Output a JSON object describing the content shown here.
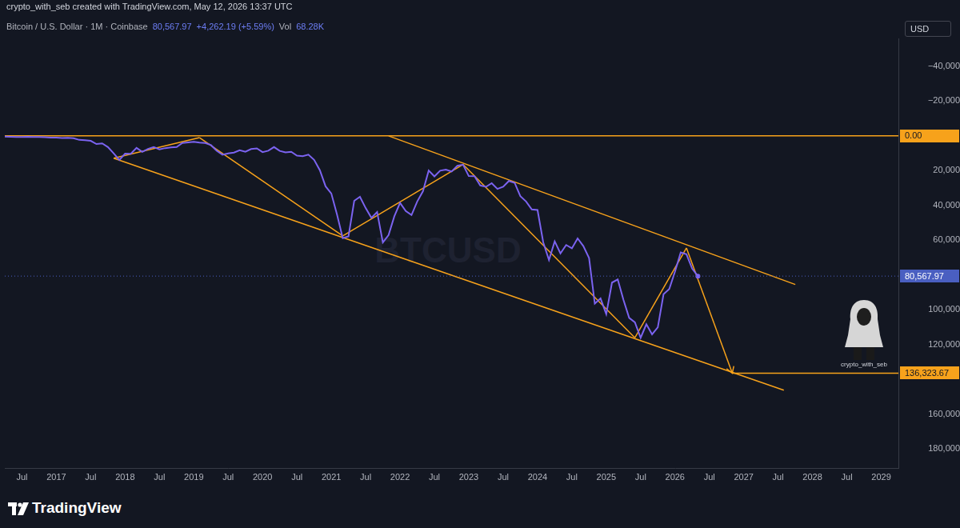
{
  "header": {
    "credit": "crypto_with_seb created with TradingView.com, May 12, 2026 13:37 UTC",
    "symbol": "Bitcoin / U.S. Dollar · 1M · Coinbase",
    "last": "80,567.97",
    "change": "+4,262.19 (+5.59%)",
    "vol_label": "Vol",
    "vol": "68.28K"
  },
  "currency": "USD",
  "footer": {
    "logo": "TradingView",
    "author": "crypto_with_seb"
  },
  "chart_data": {
    "type": "line",
    "watermark": "BTCUSD",
    "color": "#7b63f0",
    "grid": false,
    "x": [
      "2016-04",
      "2016-05",
      "2016-06",
      "2016-07",
      "2016-08",
      "2016-09",
      "2016-10",
      "2016-11",
      "2016-12",
      "2017-01",
      "2017-02",
      "2017-03",
      "2017-04",
      "2017-05",
      "2017-06",
      "2017-07",
      "2017-08",
      "2017-09",
      "2017-10",
      "2017-11",
      "2017-12",
      "2018-01",
      "2018-02",
      "2018-03",
      "2018-04",
      "2018-05",
      "2018-06",
      "2018-07",
      "2018-08",
      "2018-09",
      "2018-10",
      "2018-11",
      "2018-12",
      "2019-01",
      "2019-02",
      "2019-03",
      "2019-04",
      "2019-05",
      "2019-06",
      "2019-07",
      "2019-08",
      "2019-09",
      "2019-10",
      "2019-11",
      "2019-12",
      "2020-01",
      "2020-02",
      "2020-03",
      "2020-04",
      "2020-05",
      "2020-06",
      "2020-07",
      "2020-08",
      "2020-09",
      "2020-10",
      "2020-11",
      "2020-12",
      "2021-01",
      "2021-02",
      "2021-03",
      "2021-04",
      "2021-05",
      "2021-06",
      "2021-07",
      "2021-08",
      "2021-09",
      "2021-10",
      "2021-11",
      "2021-12",
      "2022-01",
      "2022-02",
      "2022-03",
      "2022-04",
      "2022-05",
      "2022-06",
      "2022-07",
      "2022-08",
      "2022-09",
      "2022-10",
      "2022-11",
      "2022-12",
      "2023-01",
      "2023-02",
      "2023-03",
      "2023-04",
      "2023-05",
      "2023-06",
      "2023-07",
      "2023-08",
      "2023-09",
      "2023-10",
      "2023-11",
      "2023-12",
      "2024-01",
      "2024-02",
      "2024-03",
      "2024-04",
      "2024-05",
      "2024-06",
      "2024-07",
      "2024-08",
      "2024-09",
      "2024-10",
      "2024-11",
      "2024-12",
      "2025-01",
      "2025-02",
      "2025-03",
      "2025-04",
      "2025-05",
      "2025-06",
      "2025-07",
      "2025-08",
      "2025-09",
      "2025-10",
      "2025-11",
      "2025-12",
      "2026-01",
      "2026-02",
      "2026-03",
      "2026-04",
      "2026-05"
    ],
    "values": [
      448,
      531,
      673,
      624,
      573,
      609,
      700,
      742,
      963,
      970,
      1190,
      1080,
      1350,
      2300,
      2480,
      2870,
      4700,
      4340,
      6450,
      10000,
      13850,
      10200,
      10330,
      6930,
      9240,
      7500,
      6400,
      7730,
      7030,
      6630,
      6370,
      4040,
      3740,
      3460,
      3820,
      4100,
      5320,
      8560,
      10820,
      10080,
      9600,
      8290,
      9150,
      7550,
      7190,
      9350,
      8540,
      6420,
      8630,
      9450,
      9140,
      11350,
      11650,
      10780,
      13800,
      19700,
      28990,
      33100,
      45200,
      58800,
      57700,
      37300,
      35000,
      41500,
      47100,
      43800,
      61300,
      57000,
      46200,
      38500,
      43200,
      45500,
      37700,
      31800,
      19900,
      23300,
      20000,
      19400,
      20500,
      17200,
      16550,
      23100,
      23150,
      28500,
      29250,
      27200,
      30450,
      29200,
      25900,
      26950,
      34650,
      37700,
      42250,
      42600,
      61200,
      71300,
      60600,
      67500,
      62700,
      64600,
      58900,
      63300,
      70200,
      96400,
      93400,
      102400,
      84300,
      82500,
      94200,
      104600,
      107100,
      116000,
      108200,
      114000,
      110000,
      91000,
      88000,
      78000,
      67000,
      68000,
      76300,
      80567.97
    ],
    "xlim": [
      "2016-04",
      "2029-04"
    ],
    "xticks": [
      {
        "value": "2016-07",
        "label": "Jul"
      },
      {
        "value": "2017-01",
        "label": "2017"
      },
      {
        "value": "2017-07",
        "label": "Jul"
      },
      {
        "value": "2018-01",
        "label": "2018"
      },
      {
        "value": "2018-07",
        "label": "Jul"
      },
      {
        "value": "2019-01",
        "label": "2019"
      },
      {
        "value": "2019-07",
        "label": "Jul"
      },
      {
        "value": "2020-01",
        "label": "2020"
      },
      {
        "value": "2020-07",
        "label": "Jul"
      },
      {
        "value": "2021-01",
        "label": "2021"
      },
      {
        "value": "2021-07",
        "label": "Jul"
      },
      {
        "value": "2022-01",
        "label": "2022"
      },
      {
        "value": "2022-07",
        "label": "Jul"
      },
      {
        "value": "2023-01",
        "label": "2023"
      },
      {
        "value": "2023-07",
        "label": "Jul"
      },
      {
        "value": "2024-01",
        "label": "2024"
      },
      {
        "value": "2024-07",
        "label": "Jul"
      },
      {
        "value": "2025-01",
        "label": "2025"
      },
      {
        "value": "2025-07",
        "label": "Jul"
      },
      {
        "value": "2026-01",
        "label": "2026"
      },
      {
        "value": "2026-07",
        "label": "Jul"
      },
      {
        "value": "2027-01",
        "label": "2027"
      },
      {
        "value": "2027-07",
        "label": "Jul"
      },
      {
        "value": "2028-01",
        "label": "2028"
      },
      {
        "value": "2028-07",
        "label": "Jul"
      },
      {
        "value": "2029-01",
        "label": "2029"
      }
    ],
    "ylim": [
      191000,
      -56000
    ],
    "yticks": [
      {
        "value": -40000,
        "label": "−40,000"
      },
      {
        "value": -20000,
        "label": "−20,000"
      },
      {
        "value": 20000,
        "label": "20,000"
      },
      {
        "value": 40000,
        "label": "40,000"
      },
      {
        "value": 60000,
        "label": "60,000"
      },
      {
        "value": 100000,
        "label": "100,000"
      },
      {
        "value": 120000,
        "label": "120,000"
      },
      {
        "value": 160000,
        "label": "160,000"
      },
      {
        "value": 180000,
        "label": "180,000"
      }
    ],
    "trend_lines": [
      {
        "x": [
          "2016-04",
          "2029-04"
        ],
        "y": [
          0,
          0
        ],
        "color": "#f7a21b"
      },
      {
        "x": [
          "2026-11",
          "2029-04"
        ],
        "y": [
          136323.67,
          136323.67
        ],
        "color": "#f7a21b"
      },
      {
        "x": [
          "2017-11",
          "2027-08"
        ],
        "y": [
          12800,
          146100
        ],
        "color": "#f7a21b"
      },
      {
        "x": [
          "2021-11",
          "2027-10"
        ],
        "y": [
          0,
          85400
        ],
        "color": "#f7a21b"
      },
      {
        "x": [
          "2017-11",
          "2019-02"
        ],
        "y": [
          12800,
          1000
        ],
        "color": "#f7a21b"
      },
      {
        "x": [
          "2019-02",
          "2021-03"
        ],
        "y": [
          1000,
          57500
        ],
        "color": "#f7a21b"
      },
      {
        "x": [
          "2021-03",
          "2022-12"
        ],
        "y": [
          57500,
          16400
        ],
        "color": "#f7a21b"
      },
      {
        "x": [
          "2022-12",
          "2025-06"
        ],
        "y": [
          16400,
          116000
        ],
        "color": "#f7a21b"
      },
      {
        "x": [
          "2025-06",
          "2026-03"
        ],
        "y": [
          116000,
          64400
        ],
        "color": "#f7a21b"
      },
      {
        "x": [
          "2026-03",
          "2026-11"
        ],
        "y": [
          64400,
          136323.67
        ],
        "color": "#f7a21b",
        "marker": "arrow"
      }
    ],
    "price_labels": [
      {
        "value": 0,
        "label": "0.00",
        "color": "#f7a21b"
      },
      {
        "value": 80567.97,
        "label": "80,567.97",
        "color": "#4a5fc1",
        "line_style": "dotted"
      },
      {
        "value": 136323.67,
        "label": "136,323.67",
        "color": "#f7a21b"
      }
    ]
  }
}
